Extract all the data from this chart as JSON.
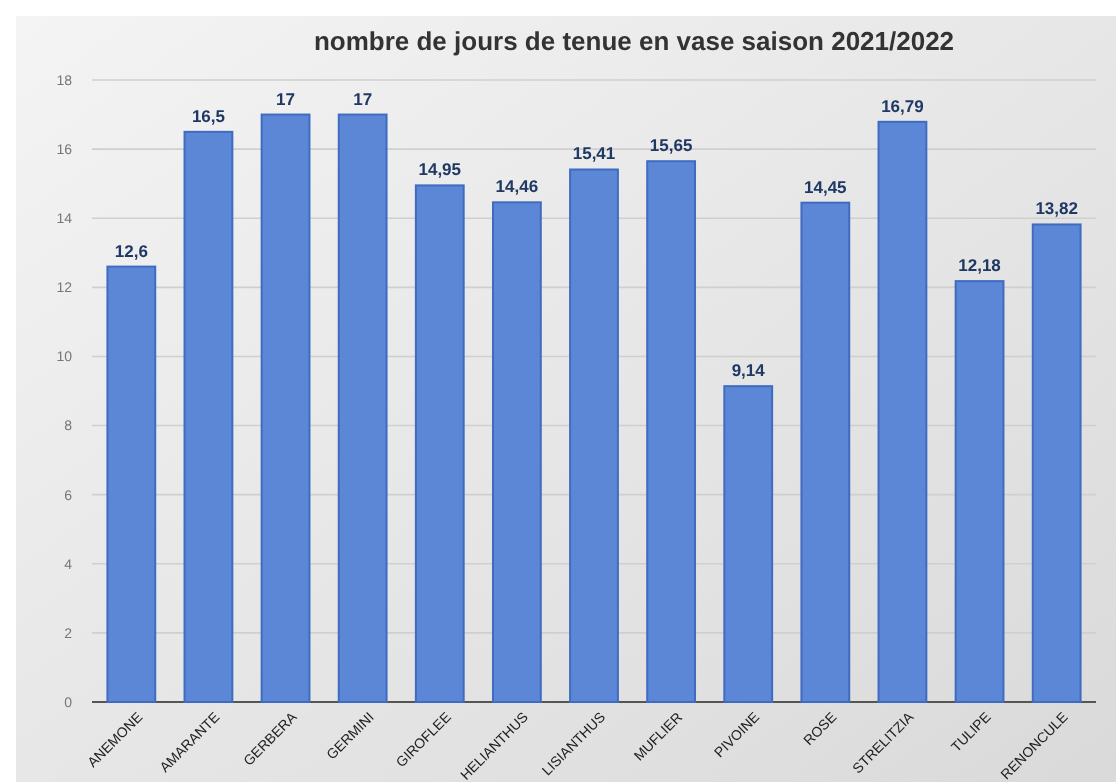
{
  "chart_data": {
    "type": "bar",
    "title": "nombre de jours de tenue en vase saison 2021/2022",
    "categories": [
      "ANEMONE",
      "AMARANTE",
      "GERBERA",
      "GERMINI",
      "GIROFLEE",
      "HELIANTHUS",
      "LISIANTHUS",
      "MUFLIER",
      "PIVOINE",
      "ROSE",
      "STRELITZIA",
      "TULIPE",
      "RENONCULE"
    ],
    "values": [
      12.6,
      16.5,
      17,
      17,
      14.95,
      14.46,
      15.41,
      15.65,
      9.14,
      14.45,
      16.79,
      12.18,
      13.82
    ],
    "value_labels": [
      "12,6",
      "16,5",
      "17",
      "17",
      "14,95",
      "14,46",
      "15,41",
      "15,65",
      "9,14",
      "14,45",
      "16,79",
      "12,18",
      "13,82"
    ],
    "color": "#5b87d6",
    "ylim": [
      0,
      18
    ],
    "yticks": [
      0,
      2,
      4,
      6,
      8,
      10,
      12,
      14,
      16,
      18
    ],
    "grid": "y"
  }
}
